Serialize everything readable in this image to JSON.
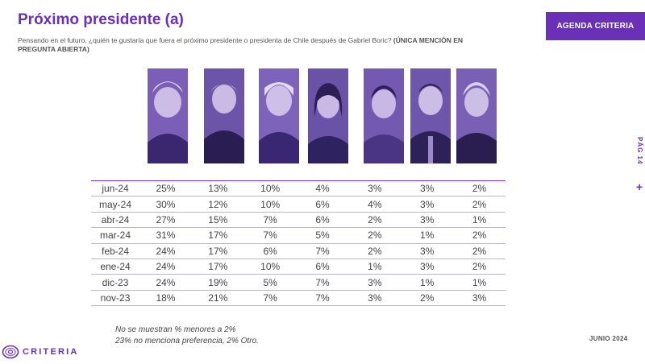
{
  "header": {
    "title": "Próximo presidente (a)",
    "subtitle_question": "Pensando en el futuro, ¿quién te gustaría que fuera el próximo presidente o presidenta de Chile después de Gabriel Boric?",
    "subtitle_note": "(ÚNICA MENCIÓN EN PREGUNTA ABIERTA)"
  },
  "badge": {
    "label": "AGENDA CRITERIA",
    "color": "#6a30b8"
  },
  "side": {
    "text": "PÁG 14",
    "plus": "+"
  },
  "photos": [
    "candidate-1-photo",
    "candidate-2-photo",
    "candidate-3-photo",
    "candidate-4-photo",
    "candidate-5-photo",
    "candidate-6-photo",
    "candidate-7-photo"
  ],
  "chart_data": {
    "type": "table",
    "rows": [
      {
        "month": "jun-24",
        "values": [
          "25%",
          "13%",
          "10%",
          "4%",
          "3%",
          "3%",
          "2%"
        ]
      },
      {
        "month": "may-24",
        "values": [
          "30%",
          "12%",
          "10%",
          "6%",
          "4%",
          "3%",
          "2%"
        ]
      },
      {
        "month": "abr-24",
        "values": [
          "27%",
          "15%",
          "7%",
          "6%",
          "2%",
          "3%",
          "1%"
        ]
      },
      {
        "month": "mar-24",
        "values": [
          "31%",
          "17%",
          "7%",
          "5%",
          "2%",
          "1%",
          "2%"
        ]
      },
      {
        "month": "feb-24",
        "values": [
          "24%",
          "17%",
          "6%",
          "7%",
          "2%",
          "3%",
          "2%"
        ]
      },
      {
        "month": "ene-24",
        "values": [
          "24%",
          "17%",
          "10%",
          "6%",
          "1%",
          "3%",
          "2%"
        ]
      },
      {
        "month": "dic-23",
        "values": [
          "24%",
          "19%",
          "5%",
          "7%",
          "3%",
          "1%",
          "1%"
        ]
      },
      {
        "month": "nov-23",
        "values": [
          "18%",
          "21%",
          "7%",
          "7%",
          "3%",
          "2%",
          "3%"
        ]
      }
    ]
  },
  "notes": {
    "line1": "No se muestran % menores a 2%",
    "line2": "23% no menciona preferencia, 2% Otro."
  },
  "footer": {
    "date": "JUNIO 2024",
    "logo_text": "CRITERIA",
    "logo_icon": "criteria-logo-icon"
  }
}
